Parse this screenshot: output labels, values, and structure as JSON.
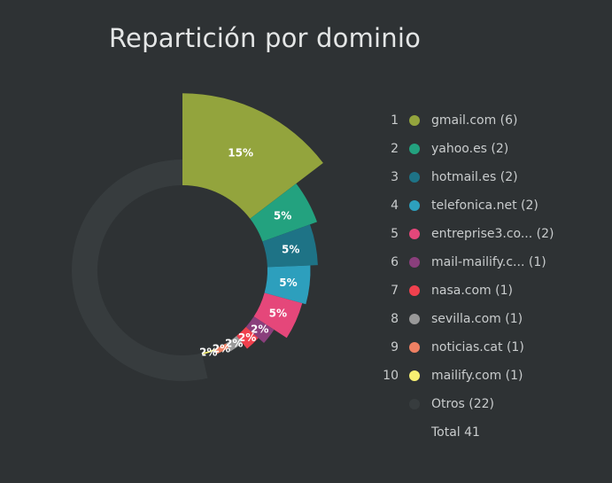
{
  "chart_data": {
    "type": "pie",
    "title": "Repartición por dominio",
    "total_label": "Total 41",
    "slices": [
      {
        "rank": "1",
        "label": "gmail.com (6)",
        "value": 6,
        "pct_label": "15%",
        "color": "#93a43d"
      },
      {
        "rank": "2",
        "label": "yahoo.es (2)",
        "value": 2,
        "pct_label": "5%",
        "color": "#23a27f"
      },
      {
        "rank": "3",
        "label": "hotmail.es (2)",
        "value": 2,
        "pct_label": "5%",
        "color": "#1e7386"
      },
      {
        "rank": "4",
        "label": "telefonica.net (2)",
        "value": 2,
        "pct_label": "5%",
        "color": "#2d9fbd"
      },
      {
        "rank": "5",
        "label": "entreprise3.co... (2)",
        "value": 2,
        "pct_label": "5%",
        "color": "#e5477a"
      },
      {
        "rank": "6",
        "label": "mail-mailify.c... (1)",
        "value": 1,
        "pct_label": "2%",
        "color": "#8a3f7c"
      },
      {
        "rank": "7",
        "label": "nasa.com (1)",
        "value": 1,
        "pct_label": "2%",
        "color": "#f0414e"
      },
      {
        "rank": "8",
        "label": "sevilla.com (1)",
        "value": 1,
        "pct_label": "2%",
        "color": "#999999"
      },
      {
        "rank": "9",
        "label": "noticias.cat (1)",
        "value": 1,
        "pct_label": "2%",
        "color": "#ee8063"
      },
      {
        "rank": "10",
        "label": "mailify.com (1)",
        "value": 1,
        "pct_label": "2%",
        "color": "#f7f072"
      },
      {
        "rank": "",
        "label": "Otros (22)",
        "value": 22,
        "pct_label": "",
        "color": "#373c3e"
      }
    ]
  }
}
